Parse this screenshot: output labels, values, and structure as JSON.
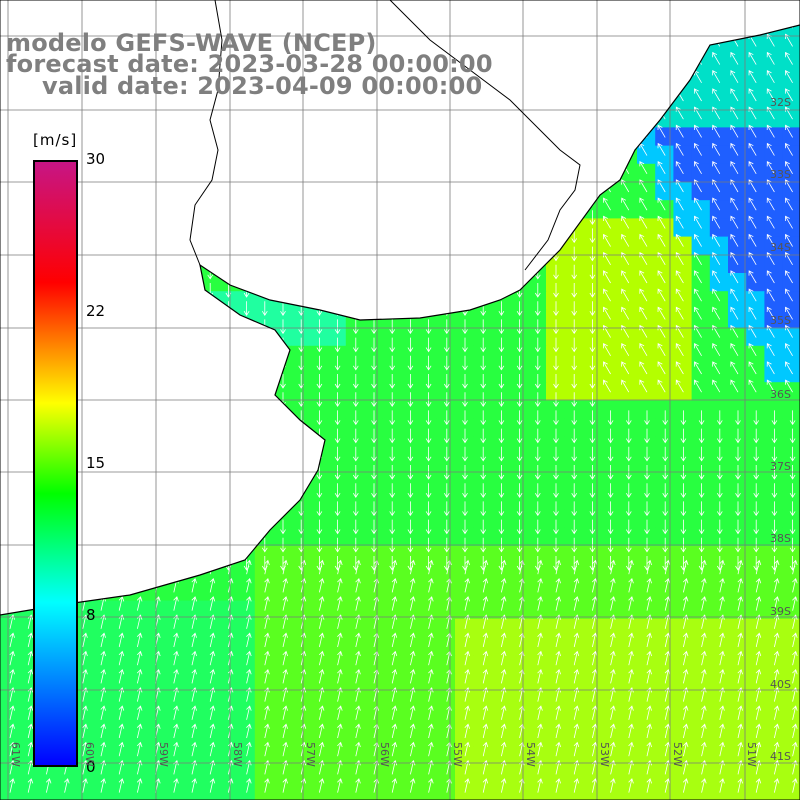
{
  "title": {
    "line1": "modelo GEFS-WAVE (NCEP)",
    "line2": "forecast date: 2023-03-28 00:00:00",
    "line3": "valid date: 2023-04-09 00:00:00"
  },
  "colorbar": {
    "unit": "[m/s]",
    "ticks": [
      "30",
      "22",
      "15",
      "8",
      "0"
    ],
    "range": [
      0,
      30
    ],
    "colors": [
      "#0000ff",
      "#00ffff",
      "#00ff00",
      "#ffff00",
      "#ff0000",
      "#c71585"
    ]
  },
  "map": {
    "variable": "wind speed with direction arrows",
    "grid_lines": true,
    "lat_labels": [
      "32S",
      "33S",
      "34S",
      "35S",
      "36S",
      "37S",
      "38S",
      "39S",
      "40S",
      "41S"
    ],
    "lon_labels": [
      "61W",
      "60W",
      "59W",
      "58W",
      "57W",
      "56W",
      "55W",
      "54W",
      "53W",
      "52W",
      "51W"
    ],
    "land_color": "#ffffff",
    "coastline_color": "#000000",
    "arrow_color": "#ffffff"
  }
}
